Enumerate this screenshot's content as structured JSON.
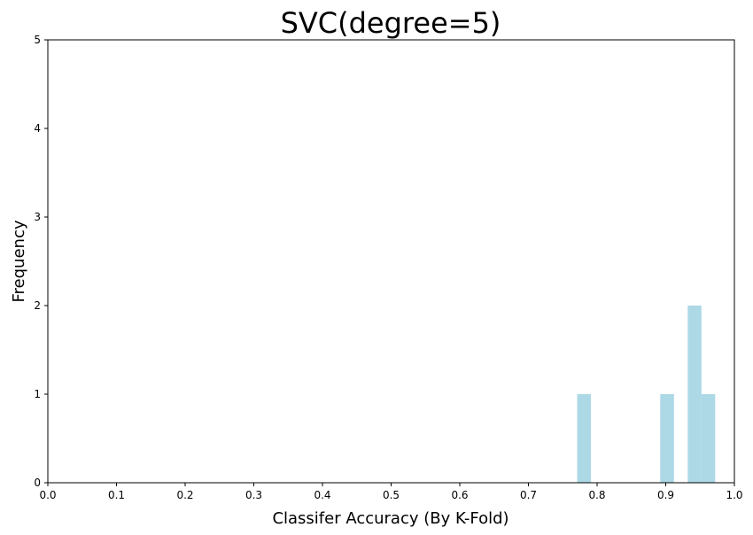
{
  "chart_data": {
    "type": "bar",
    "title": "SVC(degree=5)",
    "xlabel": "Classifer Accuracy (By K-Fold)",
    "ylabel": "Frequency",
    "xlim": [
      0.0,
      1.0
    ],
    "ylim": [
      0,
      5
    ],
    "xticks": [
      "0.0",
      "0.1",
      "0.2",
      "0.3",
      "0.4",
      "0.5",
      "0.6",
      "0.7",
      "0.8",
      "0.9",
      "1.0"
    ],
    "yticks": [
      "0",
      "1",
      "2",
      "3",
      "4",
      "5"
    ],
    "bar_color": "#add8e6",
    "grid": false,
    "bins": [
      {
        "x0": 0.771,
        "x1": 0.791,
        "count": 1
      },
      {
        "x0": 0.892,
        "x1": 0.912,
        "count": 1
      },
      {
        "x0": 0.932,
        "x1": 0.952,
        "count": 2
      },
      {
        "x0": 0.952,
        "x1": 0.972,
        "count": 1
      }
    ]
  }
}
